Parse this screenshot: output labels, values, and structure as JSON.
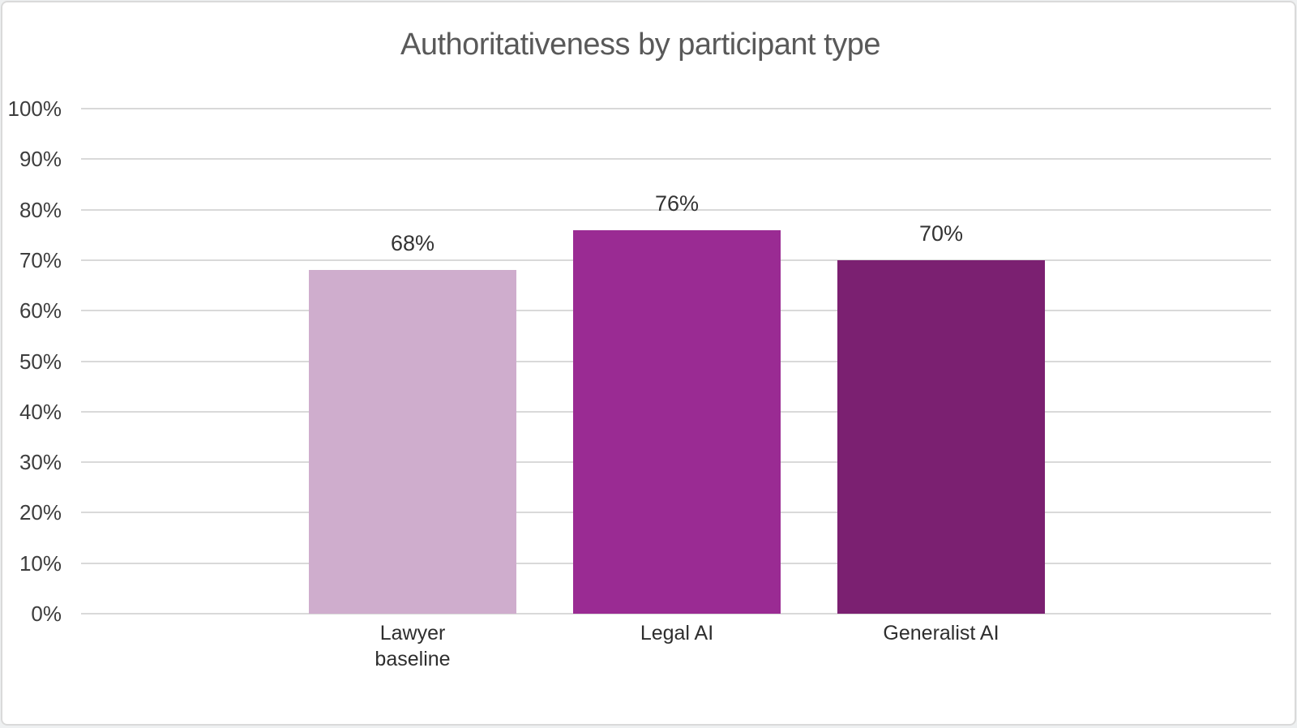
{
  "chart_data": {
    "type": "bar",
    "title": "Authoritativeness by participant type",
    "categories": [
      "Lawyer baseline",
      "Legal AI",
      "Generalist AI"
    ],
    "values": [
      68,
      76,
      70
    ],
    "data_labels": [
      "68%",
      "76%",
      "70%"
    ],
    "bar_colors": [
      "#cfadcd",
      "#9a2b93",
      "#7b2071"
    ],
    "xlabel": "",
    "ylabel": "",
    "ylim": [
      0,
      100
    ],
    "ytick_step": 10,
    "ytick_labels": [
      "0%",
      "10%",
      "20%",
      "30%",
      "40%",
      "50%",
      "60%",
      "70%",
      "80%",
      "90%",
      "100%"
    ],
    "grid": true,
    "legend": false
  },
  "colors": {
    "title_text": "#595959",
    "axis_text": "#3d3d3d",
    "gridline": "#d9d9d9",
    "chart_border": "#dadada",
    "background": "#ffffff"
  }
}
